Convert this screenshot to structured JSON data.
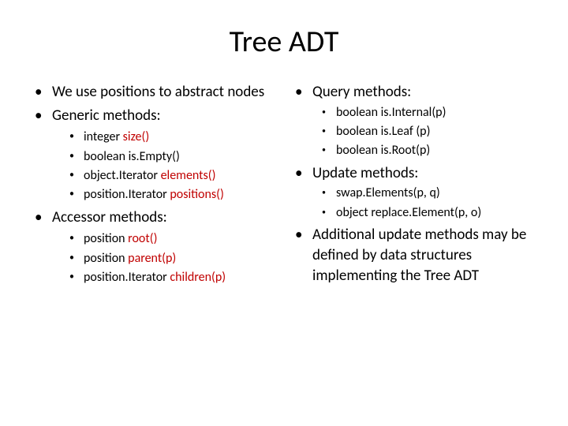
{
  "title": "Tree ADT",
  "left": {
    "b1": "We use positions to abstract nodes",
    "b2": "Generic methods:",
    "gm1_a": "integer ",
    "gm1_b": "size()",
    "gm2": "boolean is.Empty()",
    "gm3_a": "object.Iterator ",
    "gm3_b": "elements()",
    "gm4_a": "position.Iterator ",
    "gm4_b": "positions()",
    "b3": "Accessor methods:",
    "am1_a": "position ",
    "am1_b": "root()",
    "am2_a": "position ",
    "am2_b": "parent(p)",
    "am3_a": "position.Iterator ",
    "am3_b": "children(p)"
  },
  "right": {
    "b1": "Query methods:",
    "qm1": "boolean is.Internal(p)",
    "qm2": "boolean is.Leaf (p)",
    "qm3": "boolean is.Root(p)",
    "b2": "Update methods:",
    "um1": "swap.Elements(p, q)",
    "um2": "object replace.Element(p, o)",
    "b3": "Additional update methods may be defined by data structures implementing the Tree ADT"
  },
  "colors": {
    "accent": "#c00000",
    "text": "#000000",
    "background": "#ffffff"
  },
  "fonts": {
    "title_size_pt": 38,
    "bullet1_size_pt": 19,
    "bullet2_size_pt": 16
  }
}
